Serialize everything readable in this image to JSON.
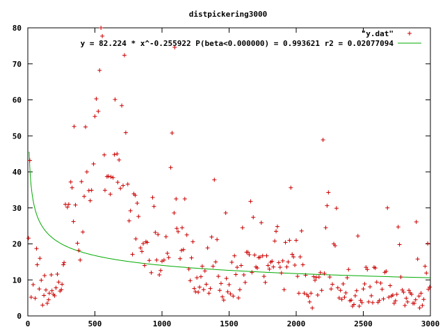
{
  "chart_data": {
    "type": "scatter",
    "title": "distpickering3000",
    "xlabel": "",
    "ylabel": "",
    "xlim": [
      0,
      3000
    ],
    "ylim": [
      0,
      80
    ],
    "x_ticks": [
      "0",
      "500",
      "1000",
      "1500",
      "2000",
      "2500",
      "3000"
    ],
    "y_ticks": [
      "0",
      "10",
      "20",
      "30",
      "40",
      "50",
      "60",
      "70",
      "80"
    ],
    "grid": false,
    "legend_position": "top-right",
    "series": [
      {
        "name": "\"y.dat\"",
        "kind": "points",
        "marker": "+",
        "color": "#cc0000",
        "points": [
          [
            5,
            21.6
          ],
          [
            15,
            43.2
          ],
          [
            25,
            5.2
          ],
          [
            40,
            8.7
          ],
          [
            55,
            4.9
          ],
          [
            65,
            18.7
          ],
          [
            70,
            14.2
          ],
          [
            85,
            7.5
          ],
          [
            90,
            16.0
          ],
          [
            100,
            9.9
          ],
          [
            110,
            3.0
          ],
          [
            120,
            5.7
          ],
          [
            125,
            11.2
          ],
          [
            135,
            7.2
          ],
          [
            145,
            3.5
          ],
          [
            155,
            4.5
          ],
          [
            160,
            6.3
          ],
          [
            175,
            11.4
          ],
          [
            180,
            7.0
          ],
          [
            190,
            6.0
          ],
          [
            200,
            5.6
          ],
          [
            210,
            7.8
          ],
          [
            220,
            11.6
          ],
          [
            230,
            9.4
          ],
          [
            240,
            6.9
          ],
          [
            250,
            7.3
          ],
          [
            255,
            8.8
          ],
          [
            265,
            14.2
          ],
          [
            270,
            14.8
          ],
          [
            280,
            31.0
          ],
          [
            295,
            30.2
          ],
          [
            305,
            31.0
          ],
          [
            320,
            37.2
          ],
          [
            330,
            35.6
          ],
          [
            340,
            26.2
          ],
          [
            345,
            52.6
          ],
          [
            355,
            30.8
          ],
          [
            370,
            20.2
          ],
          [
            380,
            18.2
          ],
          [
            390,
            15.5
          ],
          [
            400,
            37.3
          ],
          [
            410,
            23.3
          ],
          [
            420,
            33.2
          ],
          [
            430,
            52.5
          ],
          [
            440,
            40.0
          ],
          [
            455,
            34.8
          ],
          [
            465,
            32.0
          ],
          [
            475,
            34.9
          ],
          [
            490,
            42.2
          ],
          [
            500,
            55.4
          ],
          [
            510,
            60.3
          ],
          [
            525,
            56.8
          ],
          [
            535,
            68.2
          ],
          [
            545,
            80.0
          ],
          [
            555,
            77.7
          ],
          [
            570,
            44.7
          ],
          [
            575,
            34.9
          ],
          [
            590,
            38.7
          ],
          [
            600,
            38.8
          ],
          [
            615,
            33.8
          ],
          [
            620,
            38.6
          ],
          [
            635,
            38.4
          ],
          [
            645,
            44.8
          ],
          [
            650,
            60.1
          ],
          [
            665,
            45.0
          ],
          [
            670,
            37.1
          ],
          [
            680,
            43.3
          ],
          [
            690,
            35.4
          ],
          [
            700,
            58.4
          ],
          [
            710,
            36.2
          ],
          [
            720,
            72.4
          ],
          [
            730,
            50.9
          ],
          [
            745,
            36.6
          ],
          [
            755,
            26.4
          ],
          [
            765,
            29.2
          ],
          [
            780,
            17.1
          ],
          [
            790,
            33.9
          ],
          [
            800,
            33.5
          ],
          [
            805,
            21.4
          ],
          [
            815,
            31.3
          ],
          [
            825,
            27.6
          ],
          [
            840,
            18.9
          ],
          [
            850,
            17.9
          ],
          [
            860,
            20.1
          ],
          [
            870,
            14.0
          ],
          [
            880,
            20.6
          ],
          [
            890,
            20.4
          ],
          [
            905,
            15.4
          ],
          [
            920,
            12.0
          ],
          [
            930,
            32.9
          ],
          [
            940,
            30.4
          ],
          [
            950,
            23.2
          ],
          [
            960,
            15.5
          ],
          [
            970,
            22.6
          ],
          [
            980,
            11.4
          ],
          [
            990,
            12.6
          ],
          [
            1000,
            15.2
          ],
          [
            1015,
            15.5
          ],
          [
            1030,
            22.0
          ],
          [
            1040,
            17.4
          ],
          [
            1050,
            16.2
          ],
          [
            1065,
            41.2
          ],
          [
            1075,
            50.8
          ],
          [
            1090,
            28.6
          ],
          [
            1095,
            74.6
          ],
          [
            1105,
            32.5
          ],
          [
            1110,
            24.3
          ],
          [
            1120,
            23.4
          ],
          [
            1135,
            15.9
          ],
          [
            1145,
            18.2
          ],
          [
            1150,
            24.5
          ],
          [
            1160,
            18.4
          ],
          [
            1170,
            32.5
          ],
          [
            1185,
            22.5
          ],
          [
            1200,
            13.0
          ],
          [
            1210,
            9.8
          ],
          [
            1220,
            16.1
          ],
          [
            1230,
            20.6
          ],
          [
            1240,
            7.6
          ],
          [
            1250,
            6.7
          ],
          [
            1260,
            10.6
          ],
          [
            1270,
            6.6
          ],
          [
            1280,
            8.0
          ],
          [
            1290,
            10.9
          ],
          [
            1300,
            13.8
          ],
          [
            1310,
            7.3
          ],
          [
            1320,
            12.5
          ],
          [
            1330,
            8.8
          ],
          [
            1340,
            18.9
          ],
          [
            1350,
            6.3
          ],
          [
            1360,
            7.6
          ],
          [
            1370,
            21.9
          ],
          [
            1380,
            13.8
          ],
          [
            1390,
            37.8
          ],
          [
            1400,
            15.0
          ],
          [
            1410,
            21.2
          ],
          [
            1420,
            11.0
          ],
          [
            1430,
            7.1
          ],
          [
            1440,
            9.0
          ],
          [
            1450,
            5.3
          ],
          [
            1460,
            4.4
          ],
          [
            1475,
            28.6
          ],
          [
            1480,
            10.4
          ],
          [
            1490,
            6.7
          ],
          [
            1500,
            8.7
          ],
          [
            1510,
            6.1
          ],
          [
            1520,
            14.9
          ],
          [
            1530,
            5.5
          ],
          [
            1540,
            16.7
          ],
          [
            1550,
            11.5
          ],
          [
            1560,
            13.5
          ],
          [
            1570,
            5.0
          ],
          [
            1580,
            7.3
          ],
          [
            1590,
            14.0
          ],
          [
            1600,
            24.5
          ],
          [
            1610,
            11.4
          ],
          [
            1620,
            9.3
          ],
          [
            1630,
            17.7
          ],
          [
            1640,
            17.7
          ],
          [
            1650,
            17.0
          ],
          [
            1660,
            31.8
          ],
          [
            1670,
            12.1
          ],
          [
            1680,
            27.4
          ],
          [
            1690,
            16.9
          ],
          [
            1700,
            13.6
          ],
          [
            1710,
            13.3
          ],
          [
            1720,
            16.2
          ],
          [
            1730,
            16.3
          ],
          [
            1740,
            25.9
          ],
          [
            1750,
            16.7
          ],
          [
            1760,
            11.0
          ],
          [
            1770,
            9.3
          ],
          [
            1780,
            16.7
          ],
          [
            1790,
            14.0
          ],
          [
            1800,
            13.0
          ],
          [
            1810,
            14.9
          ],
          [
            1820,
            15.2
          ],
          [
            1830,
            13.6
          ],
          [
            1840,
            20.8
          ],
          [
            1850,
            23.5
          ],
          [
            1860,
            24.8
          ],
          [
            1870,
            14.8
          ],
          [
            1880,
            13.5
          ],
          [
            1890,
            11.9
          ],
          [
            1900,
            15.3
          ],
          [
            1910,
            7.3
          ],
          [
            1920,
            20.4
          ],
          [
            1930,
            13.6
          ],
          [
            1940,
            15.0
          ],
          [
            1950,
            21.0
          ],
          [
            1960,
            35.6
          ],
          [
            1970,
            17.1
          ],
          [
            1980,
            16.4
          ],
          [
            1990,
            14.1
          ],
          [
            2000,
            21.0
          ],
          [
            2010,
            11.0
          ],
          [
            2020,
            6.3
          ],
          [
            2030,
            16.4
          ],
          [
            2040,
            23.6
          ],
          [
            2050,
            14.2
          ],
          [
            2060,
            6.3
          ],
          [
            2070,
            11.3
          ],
          [
            2080,
            5.9
          ],
          [
            2090,
            5.4
          ],
          [
            2100,
            3.9
          ],
          [
            2110,
            6.3
          ],
          [
            2120,
            2.2
          ],
          [
            2130,
            10.9
          ],
          [
            2140,
            9.9
          ],
          [
            2150,
            10.7
          ],
          [
            2160,
            5.8
          ],
          [
            2170,
            10.8
          ],
          [
            2180,
            12.0
          ],
          [
            2190,
            7.1
          ],
          [
            2200,
            48.9
          ],
          [
            2210,
            11.8
          ],
          [
            2220,
            24.5
          ],
          [
            2230,
            30.6
          ],
          [
            2240,
            34.3
          ],
          [
            2250,
            10.8
          ],
          [
            2260,
            7.5
          ],
          [
            2270,
            8.8
          ],
          [
            2280,
            20.0
          ],
          [
            2290,
            19.5
          ],
          [
            2300,
            29.9
          ],
          [
            2310,
            7.8
          ],
          [
            2320,
            5.0
          ],
          [
            2330,
            7.1
          ],
          [
            2340,
            4.6
          ],
          [
            2350,
            8.9
          ],
          [
            2360,
            5.2
          ],
          [
            2370,
            6.4
          ],
          [
            2380,
            10.6
          ],
          [
            2390,
            12.9
          ],
          [
            2400,
            4.2
          ],
          [
            2410,
            4.4
          ],
          [
            2420,
            2.7
          ],
          [
            2430,
            3.2
          ],
          [
            2440,
            5.6
          ],
          [
            2450,
            7.0
          ],
          [
            2460,
            22.2
          ],
          [
            2470,
            2.7
          ],
          [
            2480,
            4.3
          ],
          [
            2490,
            3.7
          ],
          [
            2500,
            7.5
          ],
          [
            2510,
            8.9
          ],
          [
            2520,
            13.5
          ],
          [
            2530,
            12.9
          ],
          [
            2540,
            3.9
          ],
          [
            2550,
            8.1
          ],
          [
            2560,
            5.6
          ],
          [
            2570,
            3.7
          ],
          [
            2580,
            13.5
          ],
          [
            2590,
            13.3
          ],
          [
            2600,
            9.4
          ],
          [
            2610,
            3.8
          ],
          [
            2620,
            4.3
          ],
          [
            2630,
            9.1
          ],
          [
            2640,
            7.4
          ],
          [
            2650,
            4.7
          ],
          [
            2660,
            12.1
          ],
          [
            2670,
            12.4
          ],
          [
            2680,
            30.0
          ],
          [
            2690,
            5.2
          ],
          [
            2700,
            8.4
          ],
          [
            2710,
            5.5
          ],
          [
            2720,
            5.8
          ],
          [
            2730,
            3.5
          ],
          [
            2740,
            4.2
          ],
          [
            2750,
            6.0
          ],
          [
            2760,
            24.7
          ],
          [
            2770,
            19.8
          ],
          [
            2780,
            10.8
          ],
          [
            2790,
            7.2
          ],
          [
            2800,
            6.6
          ],
          [
            2810,
            2.9
          ],
          [
            2820,
            4.9
          ],
          [
            2830,
            3.9
          ],
          [
            2840,
            7.1
          ],
          [
            2850,
            6.4
          ],
          [
            2860,
            6.0
          ],
          [
            2870,
            3.5
          ],
          [
            2880,
            3.5
          ],
          [
            2890,
            4.5
          ],
          [
            2895,
            26.1
          ],
          [
            2905,
            15.8
          ],
          [
            2915,
            5.5
          ],
          [
            2920,
            2.2
          ],
          [
            2930,
            6.3
          ],
          [
            2940,
            2.9
          ],
          [
            2950,
            4.6
          ],
          [
            2960,
            13.8
          ],
          [
            2970,
            11.9
          ],
          [
            2980,
            20.1
          ],
          [
            2985,
            7.4
          ],
          [
            2995,
            8.0
          ]
        ]
      },
      {
        "name": "y = 82.224 * x^-0.255922 P(beta<0.000000) = 0.993621 r2 = 0.02077094",
        "kind": "line",
        "color": "#00aa00",
        "formula": "y = 82.224 * x^-0.255922",
        "a": 82.224,
        "b": -0.255922,
        "x_start": 10,
        "x_end": 3000
      }
    ]
  }
}
